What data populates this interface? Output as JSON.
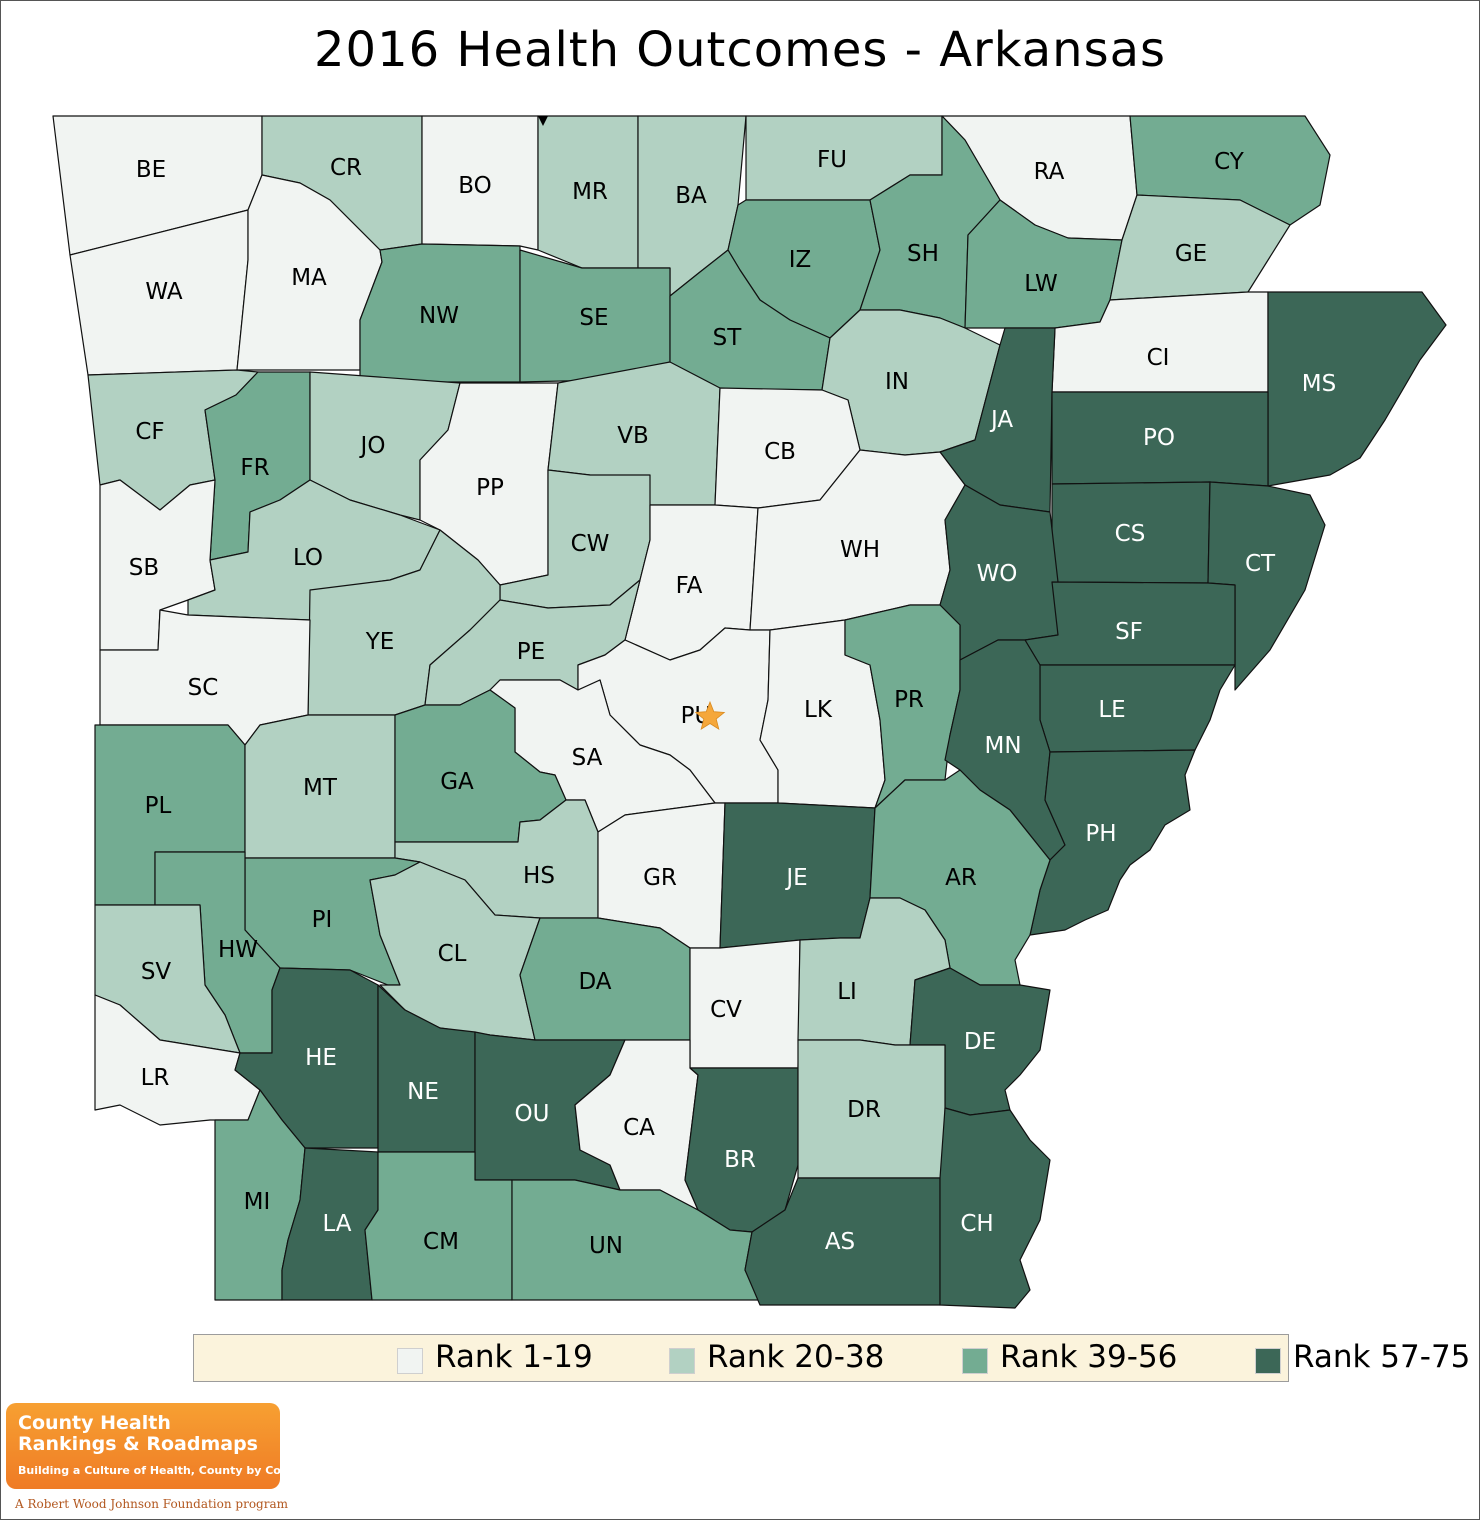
{
  "title": "2016 Health Outcomes - Arkansas",
  "colors": {
    "rank_1_19": "#f1f4f2",
    "rank_20_38": "#b2d1c2",
    "rank_39_56": "#73ac92",
    "rank_57_75": "#3c6757",
    "border": "#111111",
    "capital_star": "#f5a73b"
  },
  "legend": [
    {
      "label": "Rank 1-19",
      "tier": "rank_1_19"
    },
    {
      "label": "Rank 20-38",
      "tier": "rank_20_38"
    },
    {
      "label": "Rank 39-56",
      "tier": "rank_39_56"
    },
    {
      "label": "Rank 57-75",
      "tier": "rank_57_75"
    }
  ],
  "counties": [
    {
      "code": "BE",
      "tier": "rank_1_19"
    },
    {
      "code": "CR",
      "tier": "rank_20_38"
    },
    {
      "code": "BO",
      "tier": "rank_1_19"
    },
    {
      "code": "MR",
      "tier": "rank_20_38"
    },
    {
      "code": "BA",
      "tier": "rank_20_38"
    },
    {
      "code": "FU",
      "tier": "rank_20_38"
    },
    {
      "code": "RA",
      "tier": "rank_1_19"
    },
    {
      "code": "CY",
      "tier": "rank_39_56"
    },
    {
      "code": "WA",
      "tier": "rank_1_19"
    },
    {
      "code": "MA",
      "tier": "rank_1_19"
    },
    {
      "code": "NW",
      "tier": "rank_39_56"
    },
    {
      "code": "SE",
      "tier": "rank_39_56"
    },
    {
      "code": "IZ",
      "tier": "rank_39_56"
    },
    {
      "code": "SH",
      "tier": "rank_39_56"
    },
    {
      "code": "LW",
      "tier": "rank_39_56"
    },
    {
      "code": "GE",
      "tier": "rank_20_38"
    },
    {
      "code": "ST",
      "tier": "rank_39_56"
    },
    {
      "code": "CI",
      "tier": "rank_1_19"
    },
    {
      "code": "MS",
      "tier": "rank_57_75"
    },
    {
      "code": "IN",
      "tier": "rank_20_38"
    },
    {
      "code": "JA",
      "tier": "rank_57_75"
    },
    {
      "code": "PO",
      "tier": "rank_57_75"
    },
    {
      "code": "CF",
      "tier": "rank_20_38"
    },
    {
      "code": "FR",
      "tier": "rank_39_56"
    },
    {
      "code": "JO",
      "tier": "rank_20_38"
    },
    {
      "code": "PP",
      "tier": "rank_1_19"
    },
    {
      "code": "VB",
      "tier": "rank_20_38"
    },
    {
      "code": "CB",
      "tier": "rank_1_19"
    },
    {
      "code": "CS",
      "tier": "rank_57_75"
    },
    {
      "code": "CT",
      "tier": "rank_57_75"
    },
    {
      "code": "SB",
      "tier": "rank_1_19"
    },
    {
      "code": "LO",
      "tier": "rank_20_38"
    },
    {
      "code": "CW",
      "tier": "rank_20_38"
    },
    {
      "code": "FA",
      "tier": "rank_1_19"
    },
    {
      "code": "WH",
      "tier": "rank_1_19"
    },
    {
      "code": "WO",
      "tier": "rank_57_75"
    },
    {
      "code": "SF",
      "tier": "rank_57_75"
    },
    {
      "code": "YE",
      "tier": "rank_20_38"
    },
    {
      "code": "PE",
      "tier": "rank_20_38"
    },
    {
      "code": "SC",
      "tier": "rank_1_19"
    },
    {
      "code": "PU",
      "tier": "rank_1_19"
    },
    {
      "code": "LK",
      "tier": "rank_1_19"
    },
    {
      "code": "PR",
      "tier": "rank_39_56"
    },
    {
      "code": "LE",
      "tier": "rank_57_75"
    },
    {
      "code": "MN",
      "tier": "rank_57_75"
    },
    {
      "code": "SA",
      "tier": "rank_1_19"
    },
    {
      "code": "PL",
      "tier": "rank_39_56"
    },
    {
      "code": "MT",
      "tier": "rank_20_38"
    },
    {
      "code": "GA",
      "tier": "rank_39_56"
    },
    {
      "code": "PH",
      "tier": "rank_57_75"
    },
    {
      "code": "HS",
      "tier": "rank_20_38"
    },
    {
      "code": "GR",
      "tier": "rank_1_19"
    },
    {
      "code": "JE",
      "tier": "rank_57_75"
    },
    {
      "code": "AR",
      "tier": "rank_39_56"
    },
    {
      "code": "PI",
      "tier": "rank_39_56"
    },
    {
      "code": "HW",
      "tier": "rank_39_56"
    },
    {
      "code": "SV",
      "tier": "rank_20_38"
    },
    {
      "code": "CL",
      "tier": "rank_20_38"
    },
    {
      "code": "DA",
      "tier": "rank_39_56"
    },
    {
      "code": "CV",
      "tier": "rank_1_19"
    },
    {
      "code": "LI",
      "tier": "rank_20_38"
    },
    {
      "code": "DE",
      "tier": "rank_57_75"
    },
    {
      "code": "LR",
      "tier": "rank_1_19"
    },
    {
      "code": "HE",
      "tier": "rank_57_75"
    },
    {
      "code": "NE",
      "tier": "rank_57_75"
    },
    {
      "code": "OU",
      "tier": "rank_57_75"
    },
    {
      "code": "CA",
      "tier": "rank_1_19"
    },
    {
      "code": "BR",
      "tier": "rank_57_75"
    },
    {
      "code": "DR",
      "tier": "rank_20_38"
    },
    {
      "code": "MI",
      "tier": "rank_39_56"
    },
    {
      "code": "LA",
      "tier": "rank_57_75"
    },
    {
      "code": "CM",
      "tier": "rank_39_56"
    },
    {
      "code": "UN",
      "tier": "rank_39_56"
    },
    {
      "code": "AS",
      "tier": "rank_57_75"
    },
    {
      "code": "CH",
      "tier": "rank_57_75"
    }
  ],
  "capital_county": "PU",
  "logo": {
    "line1": "County Health",
    "line2": "Rankings & Roadmaps",
    "tagline": "Building a Culture of Health, County by County"
  },
  "credit": "A Robert Wood Johnson Foundation program"
}
